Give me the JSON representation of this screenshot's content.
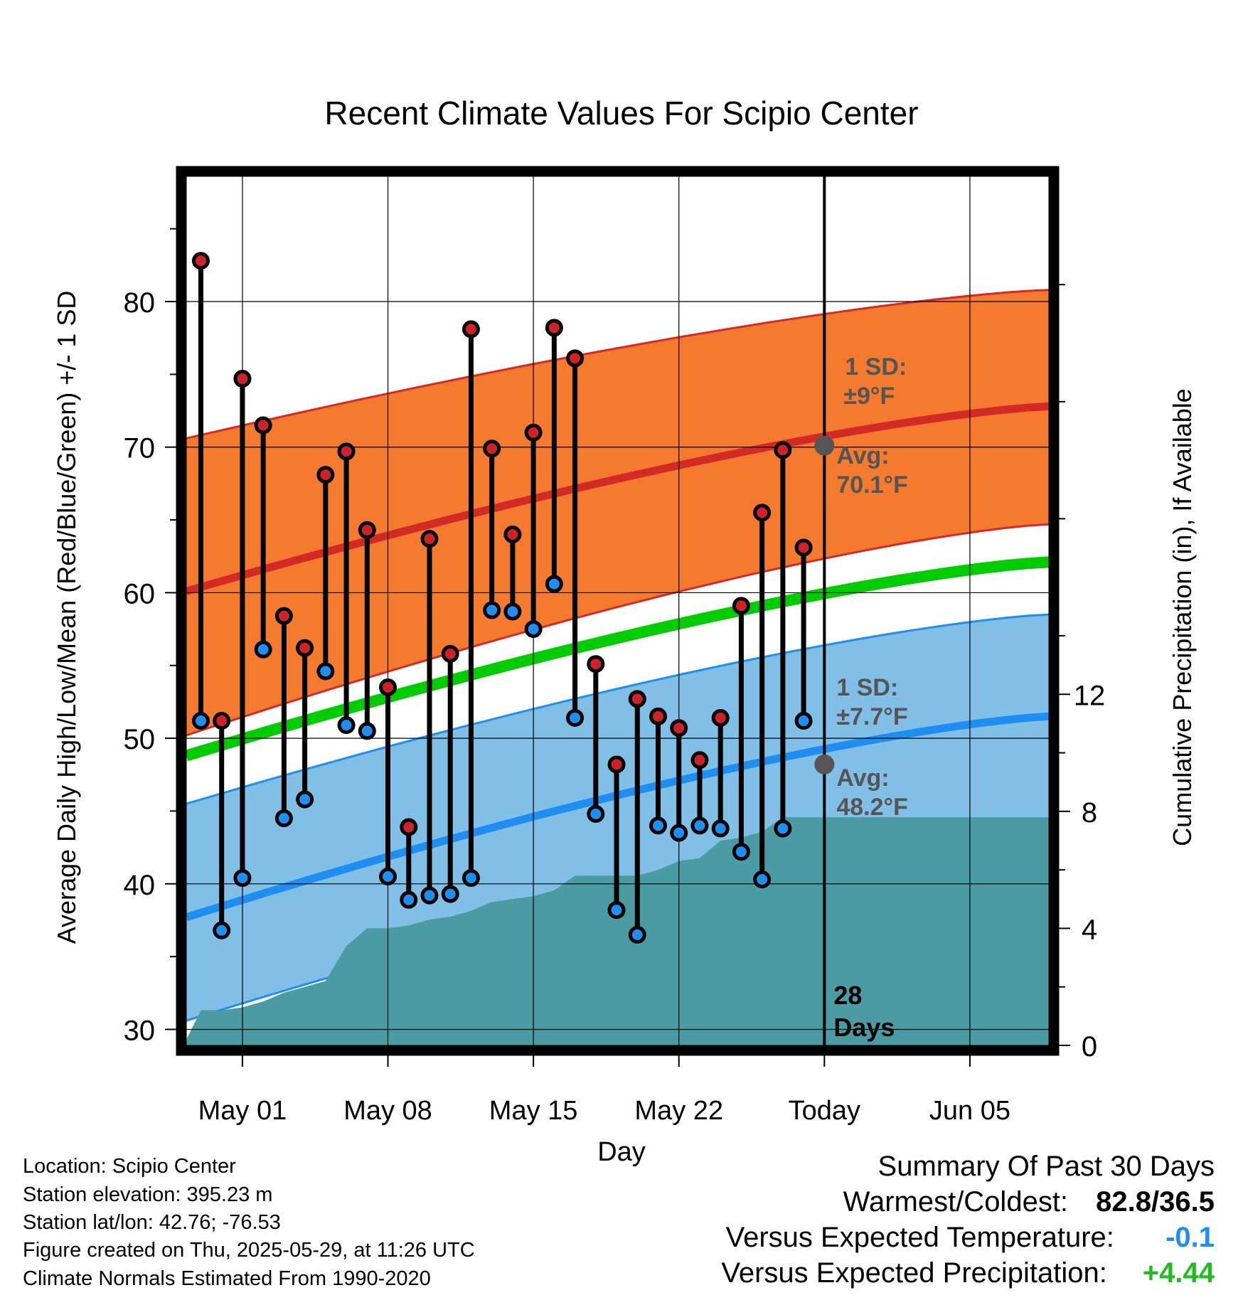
{
  "chart_data": {
    "type": "line",
    "title": "Recent Climate Values For Scipio Center",
    "xlabel": "Day",
    "ylabel": "Average Daily High/Low/Mean (Red/Blue/Green) +/- 1 SD",
    "y2label": "Cumulative Precipitation (in), If Available",
    "x_tick_labels": [
      "May 01",
      "May 08",
      "May 15",
      "May 22",
      "Today",
      "Jun 05"
    ],
    "x_tick_dates": [
      "2025-05-01",
      "2025-05-08",
      "2025-05-15",
      "2025-05-22",
      "2025-05-29",
      "2025-06-05"
    ],
    "x_range": [
      "2025-04-28.3",
      "2025-06-08.8"
    ],
    "ylim": [
      28.9,
      88.6
    ],
    "y_ticks": [
      30,
      40,
      50,
      60,
      70,
      80
    ],
    "y2lim": [
      0,
      29.7
    ],
    "y2_ticks": [
      0,
      4,
      8,
      12
    ],
    "grid": true,
    "today": "2025-05-29",
    "today_label": "28 Days",
    "daily": {
      "dates": [
        "2025-04-29",
        "2025-04-30",
        "2025-05-01",
        "2025-05-02",
        "2025-05-03",
        "2025-05-04",
        "2025-05-05",
        "2025-05-06",
        "2025-05-07",
        "2025-05-08",
        "2025-05-09",
        "2025-05-10",
        "2025-05-11",
        "2025-05-12",
        "2025-05-13",
        "2025-05-14",
        "2025-05-15",
        "2025-05-16",
        "2025-05-17",
        "2025-05-18",
        "2025-05-19",
        "2025-05-20",
        "2025-05-21",
        "2025-05-22",
        "2025-05-23",
        "2025-05-24",
        "2025-05-25",
        "2025-05-26",
        "2025-05-27",
        "2025-05-28"
      ],
      "high": [
        82.8,
        51.2,
        74.7,
        71.5,
        58.4,
        56.2,
        68.1,
        69.7,
        64.3,
        53.5,
        43.9,
        63.7,
        55.8,
        78.1,
        69.9,
        64.0,
        71.0,
        78.2,
        76.1,
        55.1,
        48.2,
        52.7,
        51.5,
        50.7,
        48.5,
        51.4,
        59.1,
        65.5,
        69.8,
        63.1
      ],
      "low": [
        51.2,
        36.8,
        40.4,
        56.1,
        44.5,
        45.8,
        54.6,
        50.9,
        50.5,
        40.5,
        38.9,
        39.2,
        39.3,
        40.4,
        58.8,
        58.7,
        57.5,
        60.6,
        51.4,
        44.8,
        38.2,
        36.5,
        44.0,
        43.5,
        44.0,
        43.8,
        42.2,
        40.3,
        43.8,
        51.2
      ]
    },
    "normals": {
      "dates": [
        "2025-04-28.3",
        "2025-06-08.8"
      ],
      "high_avg": [
        60.1,
        72.8
      ],
      "high_sd_upper": [
        70.6,
        80.8
      ],
      "high_sd_lower": [
        50.2,
        64.7
      ],
      "mean_avg": [
        48.8,
        62.1
      ],
      "low_avg": [
        37.7,
        51.5
      ],
      "low_sd_upper": [
        45.5,
        58.5
      ],
      "low_sd_lower": [
        30.6,
        44.3
      ]
    },
    "precip_cumulative": {
      "dates": [
        "2025-04-28.3",
        "2025-04-29",
        "2025-04-30",
        "2025-05-01",
        "2025-05-02",
        "2025-05-03",
        "2025-05-04",
        "2025-05-05",
        "2025-05-06",
        "2025-05-07",
        "2025-05-08",
        "2025-05-09",
        "2025-05-10",
        "2025-05-11",
        "2025-05-12",
        "2025-05-13",
        "2025-05-14",
        "2025-05-15",
        "2025-05-16",
        "2025-05-17",
        "2025-05-18",
        "2025-05-19",
        "2025-05-20",
        "2025-05-21",
        "2025-05-22",
        "2025-05-23",
        "2025-05-24",
        "2025-05-25",
        "2025-05-26",
        "2025-05-27",
        "2025-05-28",
        "2025-06-08.8"
      ],
      "values": [
        0.2,
        1.2,
        1.2,
        1.3,
        1.5,
        1.8,
        2.0,
        2.2,
        3.4,
        4.0,
        4.0,
        4.1,
        4.3,
        4.4,
        4.6,
        4.9,
        5.0,
        5.1,
        5.3,
        5.8,
        5.8,
        5.8,
        5.8,
        6.0,
        6.3,
        6.4,
        7.0,
        7.1,
        7.3,
        7.8,
        7.8,
        7.8
      ]
    },
    "annotations": {
      "high_sd_title": "1 SD:",
      "high_sd_value": "±9°F",
      "high_avg_title": "Avg:",
      "high_avg_value": "70.1°F",
      "low_sd_title": "1 SD:",
      "low_sd_value": "±7.7°F",
      "low_avg_title": "Avg:",
      "low_avg_value": "48.2°F",
      "today_avg_high": 70.1,
      "today_avg_low": 48.2
    },
    "colors": {
      "high_band": "#f47a30",
      "high_line": "#d42a26",
      "high_dot": "#cc2229",
      "mean_line": "#00cc00",
      "low_band": "#82bfe6",
      "low_line": "#1e8ff0",
      "low_dot": "#1e8ff0",
      "precip_fill": "#4a9ba4",
      "annotation_text": "#555555",
      "temp_anomaly": "#1e8ff0",
      "precip_anomaly": "#22bb22"
    }
  },
  "info": {
    "location": "Location: Scipio Center",
    "elevation": "Station elevation: 395.23 m",
    "latlon": "Station lat/lon: 42.76; -76.53",
    "created": "Figure created on Thu, 2025-05-29, at 11:26 UTC",
    "normals": "Climate Normals Estimated From 1990-2020"
  },
  "summary": {
    "heading": "Summary Of Past 30 Days",
    "warm_cold_label": "Warmest/Coldest:",
    "warm_cold_value": "82.8/36.5",
    "temp_label": "Versus Expected Temperature:",
    "temp_value": "-0.1",
    "precip_label": "Versus Expected Precipitation:",
    "precip_value": "+4.44"
  }
}
